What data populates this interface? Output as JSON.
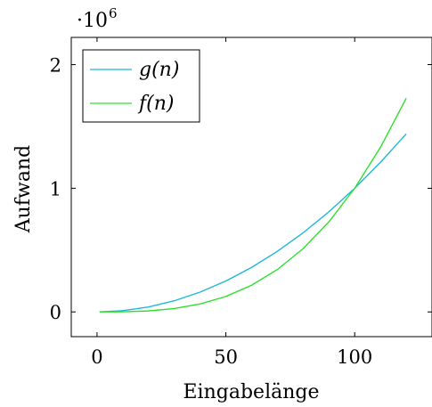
{
  "chart_data": {
    "type": "line",
    "xlabel": "Eingabelänge",
    "ylabel": "Aufwand",
    "y_multiplier_label": "·10",
    "y_multiplier_exponent": "6",
    "xlim": [
      -10,
      130
    ],
    "ylim": [
      -200000,
      2220000
    ],
    "x_ticks": [
      0,
      50,
      100
    ],
    "x_tick_labels": [
      "0",
      "50",
      "100"
    ],
    "y_ticks": [
      0,
      1000000,
      2000000
    ],
    "y_tick_labels": [
      "0",
      "1",
      "2"
    ],
    "grid": false,
    "legend_position": "top-left",
    "series": [
      {
        "name": "g(n)",
        "color": "#1fb8d6",
        "x": [
          1,
          10,
          20,
          30,
          40,
          50,
          60,
          70,
          80,
          90,
          100,
          110,
          120
        ],
        "y": [
          100,
          10000,
          40000,
          90000,
          160000,
          250000,
          360000,
          490000,
          640000,
          810000,
          1000000,
          1210000,
          1440000
        ]
      },
      {
        "name": "f(n)",
        "color": "#2ee02e",
        "x": [
          1,
          10,
          20,
          30,
          40,
          50,
          60,
          70,
          80,
          90,
          100,
          110,
          120
        ],
        "y": [
          1,
          1000,
          8000,
          27000,
          64000,
          125000,
          216000,
          343000,
          512000,
          729000,
          1000000,
          1331000,
          1728000
        ]
      }
    ]
  }
}
